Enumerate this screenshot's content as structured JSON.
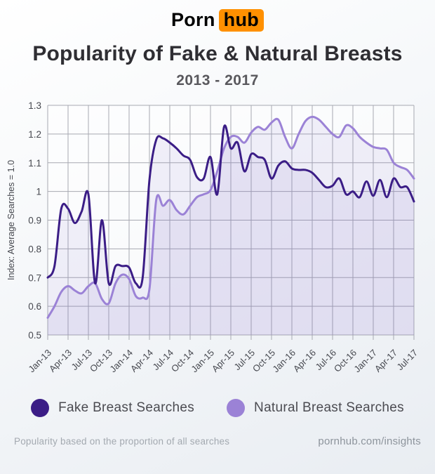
{
  "logo": {
    "part1": "Porn",
    "part2": "hub"
  },
  "title": "Popularity of Fake & Natural Breasts",
  "subtitle": "2013 - 2017",
  "legend": [
    {
      "label": "Fake Breast Searches",
      "color": "#3b1d86"
    },
    {
      "label": "Natural Breast Searches",
      "color": "#9b82d6"
    }
  ],
  "footer": {
    "left": "Popularity based on the proportion of all searches",
    "right": "pornhub.com/insights"
  },
  "colors": {
    "brand_orange": "#ff9000",
    "fake_line": "#3b1d86",
    "natural_line": "#9b82d6",
    "gridline": "#a7a9b1",
    "axis_text": "#46484f",
    "area_fill": "rgba(125,100,195,0.09)"
  },
  "chart_data": {
    "type": "line",
    "title": "Popularity of Fake & Natural Breasts 2013 - 2017",
    "xlabel": "",
    "ylabel": "Index: Average Searches = 1.0",
    "ylim": [
      0.5,
      1.3
    ],
    "yticks": [
      0.5,
      0.6,
      0.7,
      0.8,
      0.9,
      1.0,
      1.1,
      1.2,
      1.3
    ],
    "ytick_labels": [
      "0.5",
      "0.6",
      "0.7",
      "0.8",
      "0.9",
      "1",
      "1.1",
      "1.2",
      "1.3"
    ],
    "x_tick_labels": [
      "Jan-13",
      "Apr-13",
      "Jul-13",
      "Oct-13",
      "Jan-14",
      "Apr-14",
      "Jul-14",
      "Oct-14",
      "Jan-15",
      "Apr-15",
      "Jul-15",
      "Oct-15",
      "Jan-16",
      "Apr-16",
      "Jul-16",
      "Oct-16",
      "Jan-17",
      "Apr-17",
      "Jul-17"
    ],
    "x_unit": "month",
    "grid": true,
    "legend_position": "bottom",
    "series": [
      {
        "name": "Fake Breast Searches",
        "color": "#3b1d86",
        "values": [
          0.7,
          0.74,
          0.94,
          0.94,
          0.89,
          0.93,
          0.99,
          0.68,
          0.9,
          0.68,
          0.74,
          0.74,
          0.735,
          0.68,
          0.7,
          1.04,
          1.18,
          1.185,
          1.17,
          1.15,
          1.125,
          1.11,
          1.05,
          1.045,
          1.12,
          0.99,
          1.225,
          1.15,
          1.17,
          1.07,
          1.13,
          1.12,
          1.11,
          1.045,
          1.09,
          1.105,
          1.08,
          1.075,
          1.075,
          1.065,
          1.04,
          1.015,
          1.02,
          1.045,
          0.99,
          1.0,
          0.98,
          1.035,
          0.985,
          1.04,
          0.98,
          1.045,
          1.015,
          1.015,
          0.965
        ]
      },
      {
        "name": "Natural Breast Searches",
        "color": "#9b82d6",
        "values": [
          0.56,
          0.6,
          0.65,
          0.67,
          0.655,
          0.645,
          0.67,
          0.68,
          0.625,
          0.61,
          0.68,
          0.71,
          0.695,
          0.635,
          0.63,
          0.66,
          0.97,
          0.95,
          0.97,
          0.935,
          0.92,
          0.95,
          0.98,
          0.99,
          1.005,
          1.07,
          1.15,
          1.19,
          1.19,
          1.17,
          1.205,
          1.225,
          1.215,
          1.24,
          1.25,
          1.19,
          1.15,
          1.2,
          1.245,
          1.26,
          1.25,
          1.225,
          1.2,
          1.19,
          1.23,
          1.22,
          1.19,
          1.17,
          1.155,
          1.15,
          1.145,
          1.1,
          1.085,
          1.075,
          1.045
        ]
      }
    ]
  }
}
